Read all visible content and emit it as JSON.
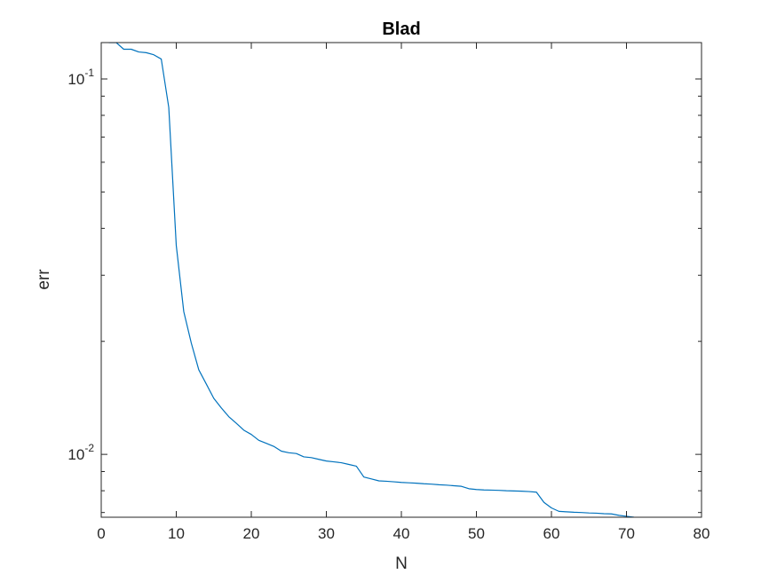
{
  "chart_data": {
    "type": "line",
    "title": "Blad",
    "xlabel": "N",
    "ylabel": "err",
    "xlim": [
      0,
      80
    ],
    "ylim": [
      0.0068,
      0.125
    ],
    "yscale": "log",
    "grid": false,
    "line_color": "#0072BD",
    "x_ticks": [
      {
        "value": 0,
        "label": "0"
      },
      {
        "value": 10,
        "label": "10"
      },
      {
        "value": 20,
        "label": "20"
      },
      {
        "value": 30,
        "label": "30"
      },
      {
        "value": 40,
        "label": "40"
      },
      {
        "value": 50,
        "label": "50"
      },
      {
        "value": 60,
        "label": "60"
      },
      {
        "value": 70,
        "label": "70"
      },
      {
        "value": 80,
        "label": "80"
      }
    ],
    "y_ticks": [
      {
        "value": 0.01,
        "base": "10",
        "exp": "-2"
      },
      {
        "value": 0.1,
        "base": "10",
        "exp": "-1"
      }
    ],
    "series": [
      {
        "x": [
          1,
          2,
          3,
          4,
          5,
          6,
          7,
          8,
          9,
          10,
          11,
          12,
          13,
          14,
          15,
          16,
          17,
          18,
          19,
          20,
          21,
          22,
          23,
          24,
          25,
          26,
          27,
          28,
          29,
          30,
          31,
          32,
          33,
          34,
          35,
          36,
          37,
          38,
          39,
          40,
          41,
          42,
          43,
          44,
          45,
          46,
          47,
          48,
          49,
          50,
          51,
          52,
          53,
          54,
          55,
          56,
          57,
          58,
          59,
          60,
          61,
          62,
          63,
          64,
          65,
          66,
          67,
          68,
          69,
          70,
          71
        ],
        "y": [
          0.125,
          0.125,
          0.12,
          0.12,
          0.118,
          0.1175,
          0.116,
          0.113,
          0.084,
          0.036,
          0.024,
          0.0198,
          0.0168,
          0.0154,
          0.0141,
          0.0133,
          0.0126,
          0.0121,
          0.0116,
          0.0113,
          0.0109,
          0.0107,
          0.0105,
          0.0102,
          0.0101,
          0.01005,
          0.00985,
          0.0098,
          0.0097,
          0.0096,
          0.00955,
          0.0095,
          0.0094,
          0.0093,
          0.0087,
          0.0086,
          0.0085,
          0.00848,
          0.00845,
          0.00842,
          0.0084,
          0.00838,
          0.00835,
          0.00833,
          0.0083,
          0.00828,
          0.00825,
          0.00822,
          0.0081,
          0.00806,
          0.00804,
          0.00803,
          0.00802,
          0.008,
          0.00799,
          0.00798,
          0.00796,
          0.00793,
          0.00745,
          0.0072,
          0.00705,
          0.00703,
          0.00701,
          0.007,
          0.00698,
          0.00697,
          0.00695,
          0.00694,
          0.00688,
          0.00684,
          0.0068
        ]
      }
    ]
  }
}
